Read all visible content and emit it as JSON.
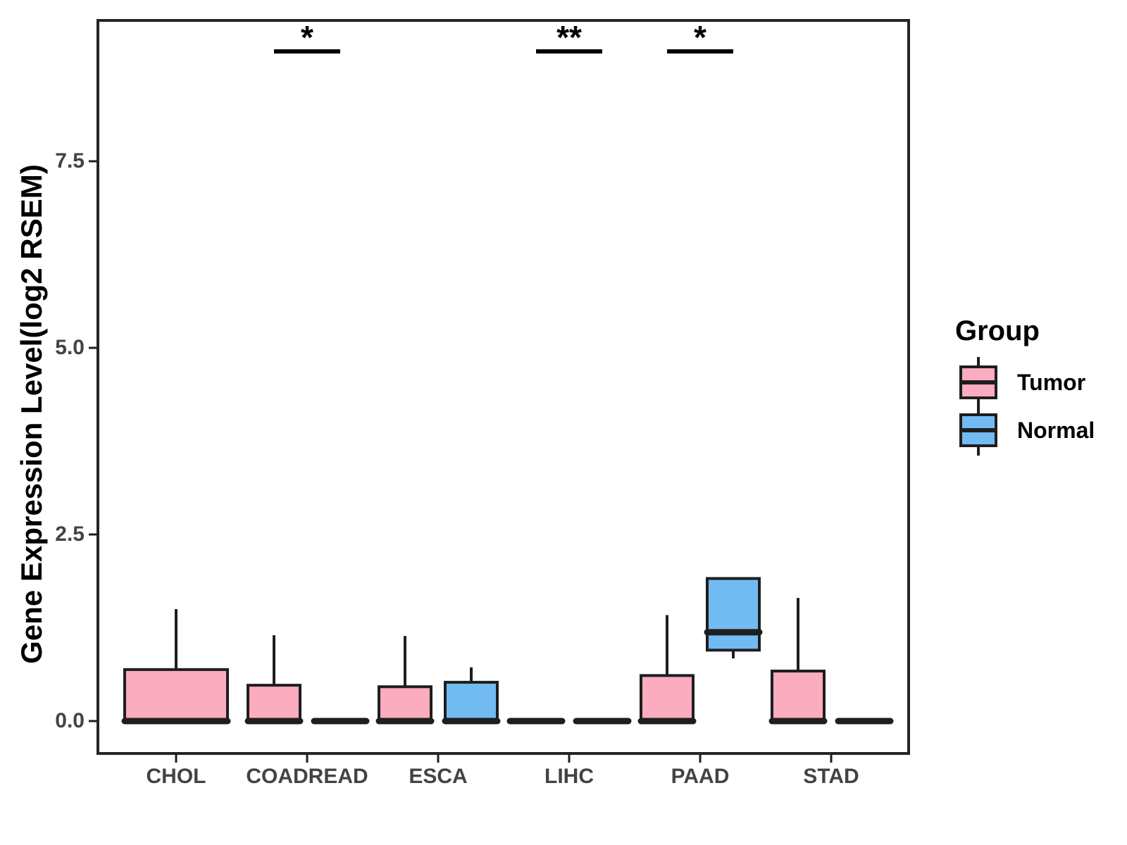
{
  "chart_data": {
    "type": "boxplot",
    "title": "",
    "ylabel": "Gene Expression Level(log2 RSEM)",
    "xlabel": "",
    "ylim": [
      -0.45,
      9.4
    ],
    "grid": false,
    "y_ticks": [
      {
        "label": "0.0",
        "value": 0
      },
      {
        "label": "2.5",
        "value": 2.5
      },
      {
        "label": "5.0",
        "value": 5
      },
      {
        "label": "7.5",
        "value": 7.5
      }
    ],
    "categories": [
      {
        "label": "CHOL",
        "tumor": {
          "min": 0,
          "q1": 0,
          "median": 0,
          "q3": 0.69,
          "max": 1.5
        },
        "normal": null
      },
      {
        "label": "COADREAD",
        "tumor": {
          "min": 0,
          "q1": 0,
          "median": 0,
          "q3": 0.48,
          "max": 1.15
        },
        "normal": {
          "min": 0,
          "q1": 0,
          "median": 0,
          "q3": 0,
          "max": 0
        }
      },
      {
        "label": "ESCA",
        "tumor": {
          "min": 0,
          "q1": 0,
          "median": 0,
          "q3": 0.46,
          "max": 1.14
        },
        "normal": {
          "min": 0,
          "q1": 0,
          "median": 0,
          "q3": 0.52,
          "max": 0.72
        }
      },
      {
        "label": "LIHC",
        "tumor": {
          "min": 0,
          "q1": 0,
          "median": 0,
          "q3": 0,
          "max": 0
        },
        "normal": {
          "min": 0,
          "q1": 0,
          "median": 0,
          "q3": 0,
          "max": 0
        }
      },
      {
        "label": "PAAD",
        "tumor": {
          "min": 0,
          "q1": 0,
          "median": 0,
          "q3": 0.61,
          "max": 1.42
        },
        "normal": {
          "min": 0.84,
          "q1": 0.95,
          "median": 1.19,
          "q3": 1.91,
          "max": 1.91
        }
      },
      {
        "label": "STAD",
        "tumor": {
          "min": 0,
          "q1": 0,
          "median": 0,
          "q3": 0.67,
          "max": 1.65
        },
        "normal": {
          "min": 0,
          "q1": 0,
          "median": 0,
          "q3": 0,
          "max": 0
        }
      }
    ],
    "significance": [
      {
        "category": "COADREAD",
        "label": "*"
      },
      {
        "category": "LIHC",
        "label": "**"
      },
      {
        "category": "PAAD",
        "label": "*"
      }
    ],
    "legend": {
      "title": "Group",
      "position": "right",
      "entries": [
        {
          "label": "Tumor",
          "color_key": "tumor"
        },
        {
          "label": "Normal",
          "color_key": "normal"
        }
      ]
    },
    "colors": {
      "tumor": "#FCACBF",
      "normal": "#72BBF2",
      "box_stroke": "#1E1E1E",
      "panel_border": "#252525",
      "axis_text": "#434343",
      "title_text": "#000000"
    }
  }
}
